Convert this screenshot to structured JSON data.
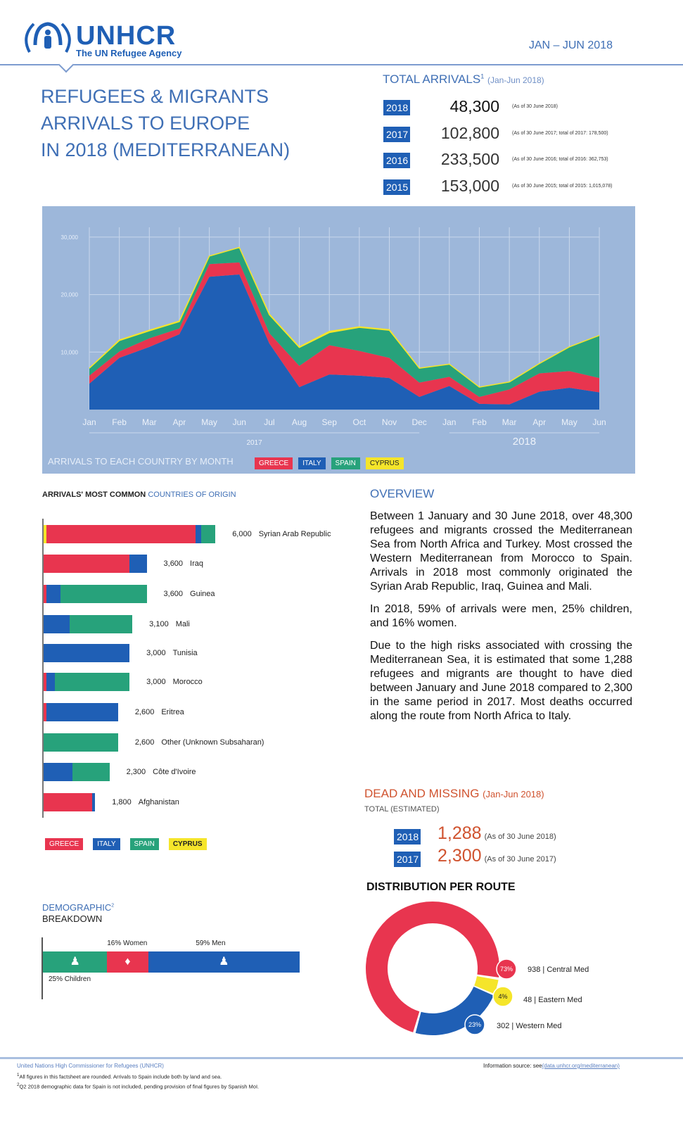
{
  "header": {
    "logo_name": "UNHCR",
    "logo_tagline": "The UN Refugee Agency",
    "period": "JAN – JUN 2018",
    "title_lines": [
      "REFUGEES & MIGRANTS",
      "ARRIVALS TO EUROPE",
      "IN 2018 (MEDITERRANEAN)"
    ]
  },
  "total_arrivals": {
    "title": "TOTAL ARRIVALS",
    "sup": "1",
    "range": "(Jan-Jun 2018)",
    "rows": [
      {
        "year": "2018",
        "value": "48,300",
        "note": "(As of 30 June 2018)"
      },
      {
        "year": "2017",
        "value": "102,800",
        "note": "(As of 30 June 2017; total of 2017: 178,500)"
      },
      {
        "year": "2016",
        "value": "233,500",
        "note": "(As of 30 June 2016; total of 2016: 362,753)"
      },
      {
        "year": "2015",
        "value": "153,000",
        "note": "(As of 30 June 2015; total of 2015: 1,015,078)"
      }
    ]
  },
  "colors": {
    "greece": "#e8354f",
    "italy": "#1f5fb5",
    "spain": "#27a27b",
    "cyprus": "#f5e52a",
    "chart_bg": "#9db7da",
    "accent": "#3f6fb5",
    "dead": "#d0532f"
  },
  "chart_data": [
    {
      "type": "area",
      "stacked": true,
      "title": "ARRIVALS TO EACH COUNTRY BY MONTH",
      "grid": true,
      "ylim": [
        0,
        30000
      ],
      "yticks": [
        "10,000",
        "20,000",
        "30,000"
      ],
      "ytick_values": [
        10000,
        20000,
        30000
      ],
      "x": [
        "Jan",
        "Feb",
        "Mar",
        "Apr",
        "May",
        "Jun",
        "Jul",
        "Aug",
        "Sep",
        "Oct",
        "Nov",
        "Dec",
        "Jan",
        "Feb",
        "Mar",
        "Apr",
        "May",
        "Jun"
      ],
      "year_groups": [
        {
          "label": "2017",
          "months": 12
        },
        {
          "label": "2018",
          "months": 6
        }
      ],
      "legend": [
        "GREECE",
        "ITALY",
        "SPAIN",
        "CYPRUS"
      ],
      "legend_placement": "bottom",
      "series": [
        {
          "name": "ITALY",
          "values": [
            4500,
            9000,
            10900,
            13100,
            23100,
            23500,
            11500,
            3900,
            6100,
            5900,
            5500,
            2200,
            4100,
            1000,
            900,
            3100,
            3800,
            3000
          ]
        },
        {
          "name": "GREECE",
          "values": [
            1400,
            1100,
            1500,
            1000,
            2200,
            2100,
            1800,
            3700,
            5100,
            4300,
            3500,
            2500,
            1600,
            1200,
            2600,
            3200,
            2900,
            2500
          ]
        },
        {
          "name": "SPAIN",
          "values": [
            1300,
            1900,
            1300,
            1200,
            1400,
            2600,
            3200,
            3200,
            2200,
            4100,
            4800,
            2500,
            2200,
            1700,
            1300,
            1700,
            4200,
            7400
          ]
        },
        {
          "name": "CYPRUS",
          "values": [
            0,
            100,
            100,
            100,
            0,
            0,
            100,
            100,
            200,
            100,
            100,
            0,
            0,
            0,
            0,
            0,
            0,
            0
          ]
        }
      ]
    },
    {
      "type": "bar",
      "orientation": "horizontal",
      "stacked": true,
      "title": "ARRIVALS' MOST COMMON",
      "title_accent": "COUNTRIES OF ORIGIN",
      "legend": [
        "GREECE",
        "ITALY",
        "SPAIN",
        "CYPRUS"
      ],
      "legend_placement": "bottom",
      "categories": [
        "Syrian Arab Republic",
        "Iraq",
        "Guinea",
        "Mali",
        "Tunisia",
        "Morocco",
        "Eritrea",
        "Other (Unknown Subsaharan)",
        "Côte d'Ivoire",
        "Afghanistan"
      ],
      "labels": [
        "6,000",
        "3,600",
        "3,600",
        "3,100",
        "3,000",
        "3,000",
        "2,600",
        "2,600",
        "2,300",
        "1,800"
      ],
      "series": [
        {
          "name": "CYPRUS",
          "values": [
            100,
            0,
            0,
            0,
            0,
            0,
            0,
            0,
            0,
            0
          ]
        },
        {
          "name": "GREECE",
          "values": [
            5200,
            3000,
            100,
            0,
            0,
            100,
            100,
            0,
            0,
            1700
          ]
        },
        {
          "name": "ITALY",
          "values": [
            200,
            600,
            500,
            900,
            3000,
            300,
            2500,
            0,
            1000,
            100
          ]
        },
        {
          "name": "SPAIN",
          "values": [
            500,
            0,
            3000,
            2200,
            0,
            2600,
            0,
            2600,
            1300,
            0
          ]
        }
      ]
    },
    {
      "type": "bar",
      "orientation": "horizontal",
      "stacked": true,
      "title": "DEMOGRAPHIC",
      "sup": "2",
      "subtitle": "BREAKDOWN",
      "segments": [
        {
          "label": "25% Children",
          "value": 25,
          "color": "#27a27b"
        },
        {
          "label": "16% Women",
          "value": 16,
          "color": "#e8354f"
        },
        {
          "label": "59% Men",
          "value": 59,
          "color": "#1f5fb5"
        }
      ]
    },
    {
      "type": "pie",
      "donut": true,
      "title": "DISTRIBUTION PER ROUTE",
      "slices": [
        {
          "label": "938 | Central Med",
          "pct": "73%",
          "value": 73,
          "color": "#e8354f"
        },
        {
          "label": "48 | Eastern Med",
          "pct": "4%",
          "value": 4,
          "color": "#f5e52a"
        },
        {
          "label": "302 | Western Med",
          "pct": "23%",
          "value": 23,
          "color": "#1f5fb5"
        }
      ]
    }
  ],
  "overview": {
    "title": "OVERVIEW",
    "paragraphs": [
      "Between 1 January and 30 June 2018, over 48,300 refugees and migrants crossed the Mediterranean Sea from North Africa and Turkey. Most crossed the Western Mediterranean from Morocco to Spain. Arrivals in 2018 most commonly originated the Syrian Arab Republic, Iraq, Guinea and Mali.",
      "In 2018, 59% of arrivals were men, 25% children, and 16% women.",
      "Due to the high risks associated with crossing the Mediterranean Sea, it is estimated that some 1,288 refugees and migrants are thought to have died between January and June 2018 compared to 2,300 in the same period in 2017. Most deaths occurred along the route from North Africa to Italy."
    ]
  },
  "dead_missing": {
    "title": "DEAD AND MISSING",
    "range": "(Jan-Jun 2018)",
    "subtitle": "TOTAL (ESTIMATED)",
    "rows": [
      {
        "year": "2018",
        "value": "1,288",
        "note": "(As of 30 June 2018)"
      },
      {
        "year": "2017",
        "value": "2,300",
        "note": "(As of 30 June 2017)"
      }
    ]
  },
  "footer": {
    "org": "United Nations High Commissioner for Refugees (UNHCR)",
    "source_label": "Information source: see",
    "source_link": "(data.unhcr.org/mediterranean)",
    "notes": [
      {
        "sup": "1",
        "text": "All figures in this factsheet are rounded. Arrivals to Spain include both by land and sea."
      },
      {
        "sup": "2",
        "text": "Q2 2018 demographic data for Spain is not included, pending provision of final figures by Spanish MoI."
      }
    ]
  }
}
